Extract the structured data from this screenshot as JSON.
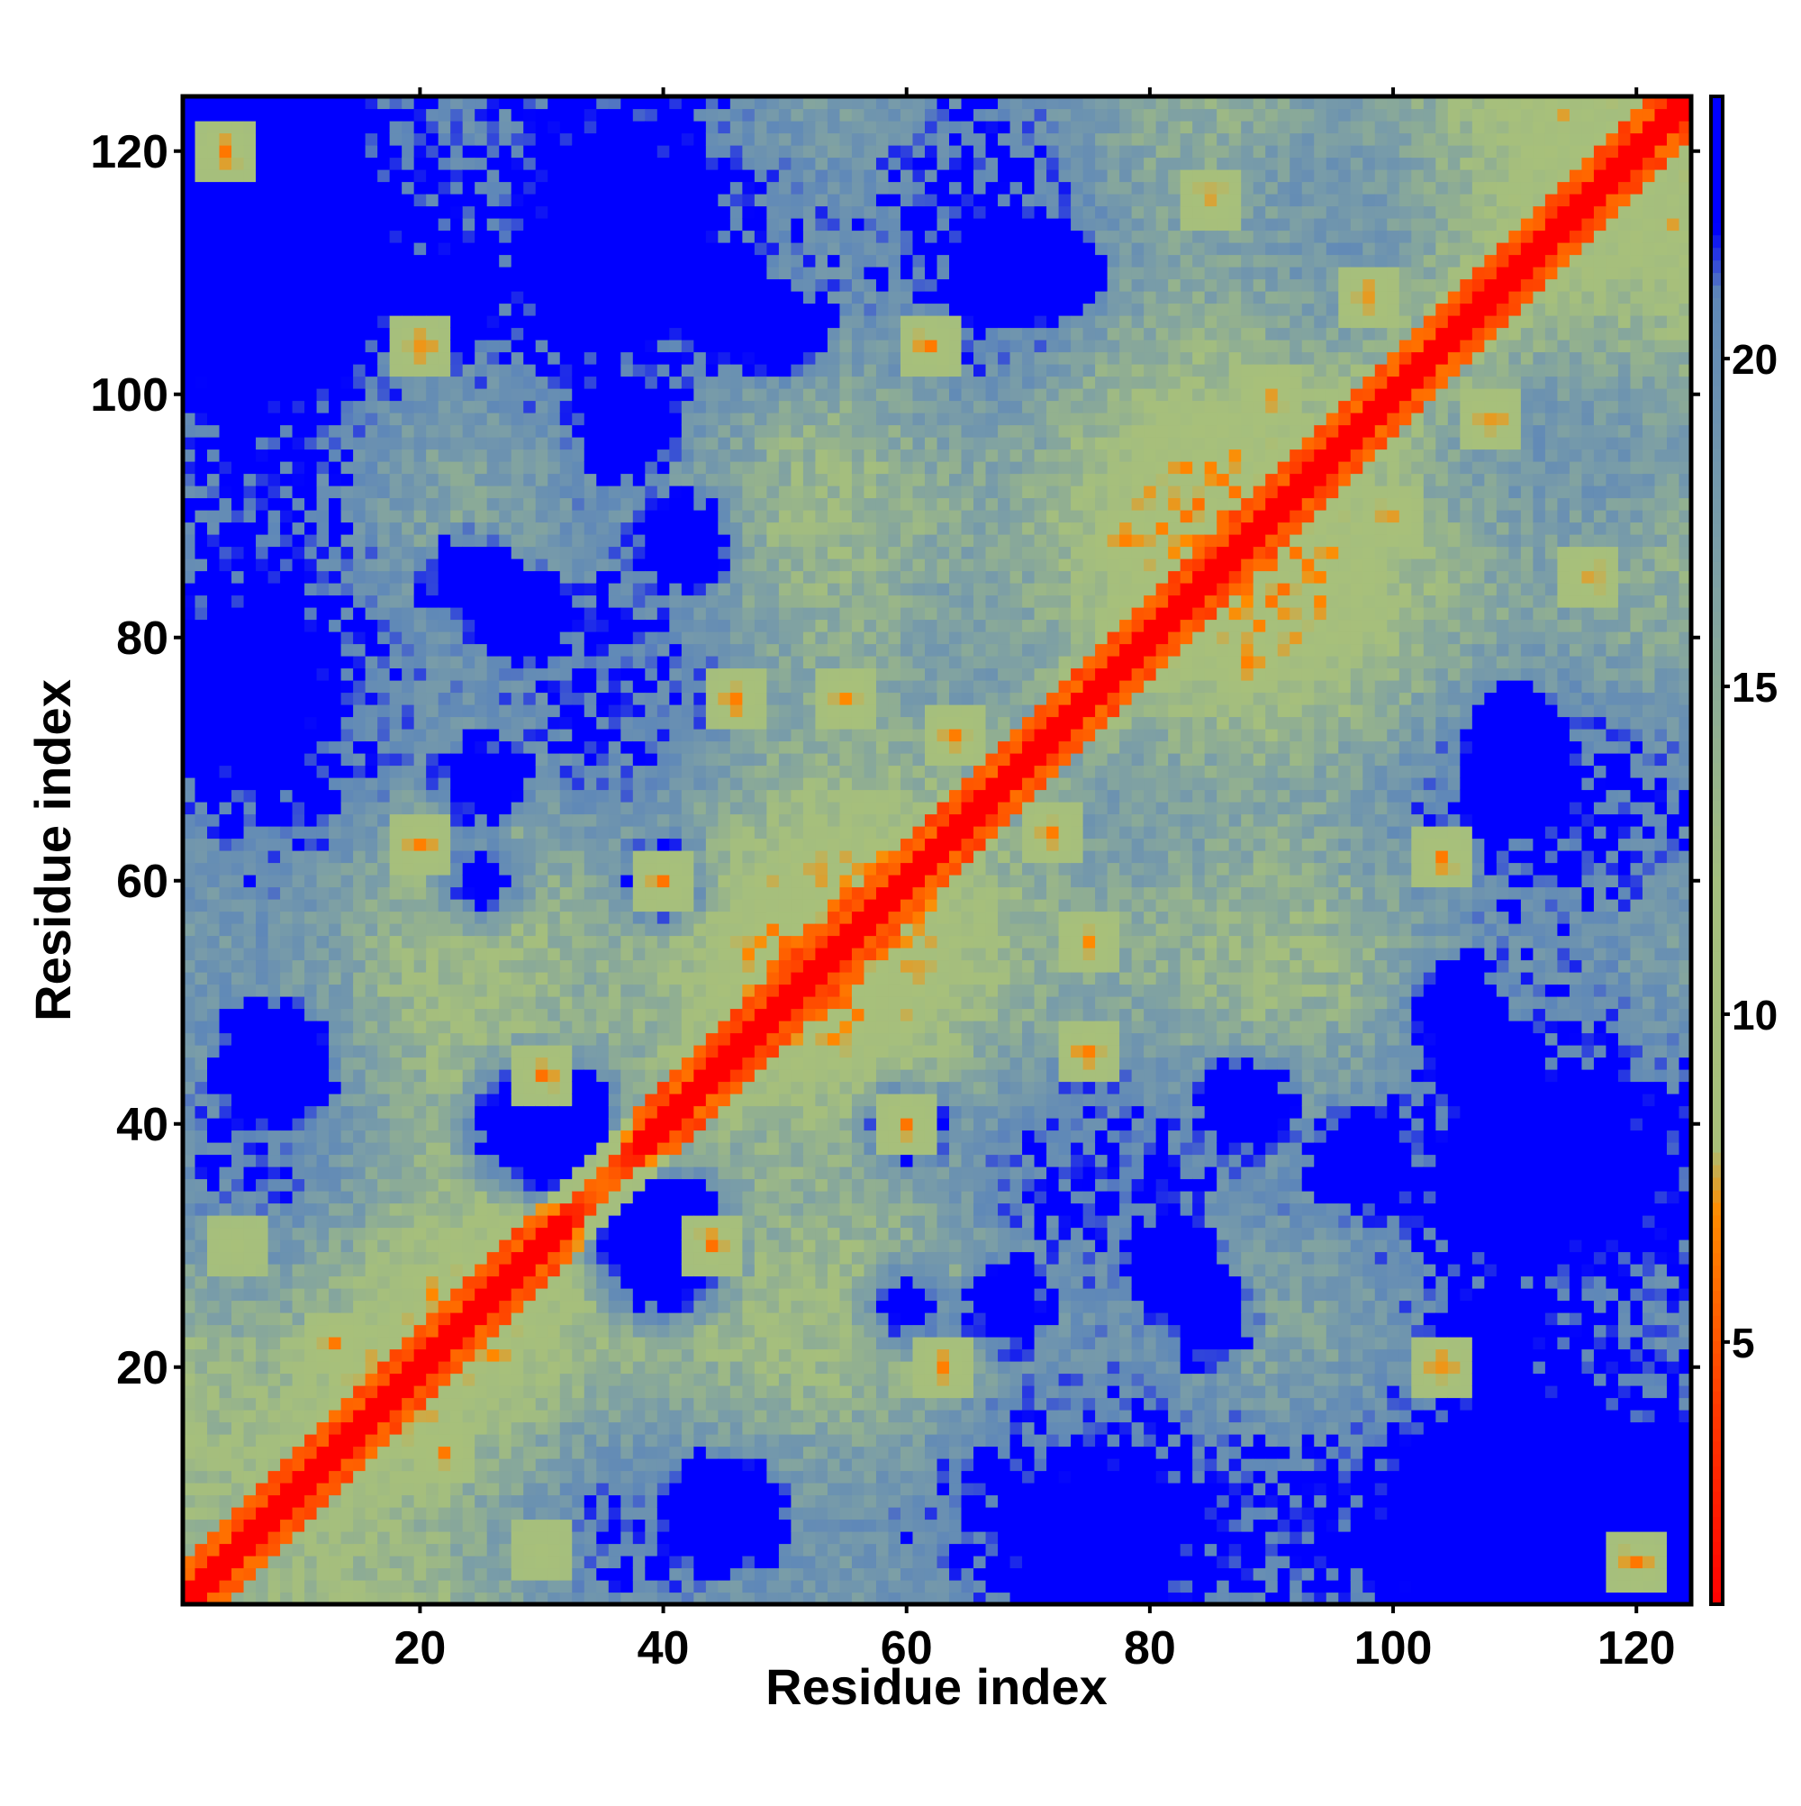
{
  "chart_data": {
    "type": "heatmap",
    "title": "",
    "xlabel": "Residue index",
    "ylabel": "Residue index",
    "n_residues": 124,
    "xlim": [
      1,
      124
    ],
    "ylim": [
      1,
      124
    ],
    "x_ticks": [
      20,
      40,
      60,
      80,
      100,
      120
    ],
    "y_ticks": [
      20,
      40,
      60,
      80,
      100,
      120
    ],
    "x_tick_labels": [
      "20",
      "40",
      "60",
      "80",
      "100",
      "120"
    ],
    "y_tick_labels": [
      "20",
      "40",
      "60",
      "80",
      "100",
      "120"
    ],
    "colorbar": {
      "range": [
        1,
        24
      ],
      "ticks": [
        5,
        10,
        15,
        20
      ],
      "tick_labels": [
        "5",
        "10",
        "15",
        "20"
      ],
      "placement": "right"
    },
    "color_scale": [
      {
        "value": 1,
        "color": "#ff0000"
      },
      {
        "value": 4,
        "color": "#ff3a00"
      },
      {
        "value": 7,
        "color": "#ff8c00"
      },
      {
        "value": 8,
        "color": "#a8c07a"
      },
      {
        "value": 12,
        "color": "#a4be7e"
      },
      {
        "value": 17,
        "color": "#7b9ea7"
      },
      {
        "value": 21,
        "color": "#5f88b8"
      },
      {
        "value": 22,
        "color": "#0000ff"
      },
      {
        "value": 24,
        "color": "#0000ff"
      }
    ],
    "symmetric": true,
    "diagonal_value": 0,
    "saturation_value": 24,
    "contact_regions": [
      {
        "i": 13,
        "j": 22,
        "value": 6
      },
      {
        "i": 30,
        "j": 44,
        "value": 6
      },
      {
        "i": 40,
        "j": 60,
        "value": 6
      },
      {
        "i": 55,
        "j": 75,
        "value": 6
      },
      {
        "i": 64,
        "j": 72,
        "value": 6
      },
      {
        "i": 78,
        "j": 88,
        "value": 6
      },
      {
        "i": 90,
        "j": 100,
        "value": 6
      },
      {
        "i": 98,
        "j": 108,
        "value": 6
      },
      {
        "i": 4,
        "j": 120,
        "value": 6
      },
      {
        "i": 62,
        "j": 104,
        "value": 6
      },
      {
        "i": 85,
        "j": 116,
        "value": 6
      },
      {
        "i": 5,
        "j": 30,
        "value": 7
      },
      {
        "i": 20,
        "j": 104,
        "value": 6
      },
      {
        "i": 63,
        "j": 20,
        "value": 6
      },
      {
        "i": 75,
        "j": 46,
        "value": 6
      }
    ],
    "far_regions": [
      {
        "i": 30,
        "j": 40,
        "size": 8
      },
      {
        "i": 8,
        "j": 45,
        "size": 6
      },
      {
        "i": 25,
        "j": 60,
        "size": 5
      },
      {
        "i": 28,
        "j": 82,
        "size": 5
      },
      {
        "i": 37,
        "j": 97,
        "size": 5
      },
      {
        "i": 45,
        "j": 108,
        "size": 5
      },
      {
        "i": 22,
        "j": 107,
        "size": 5
      },
      {
        "i": 72,
        "j": 110,
        "size": 5
      },
      {
        "i": 68,
        "j": 25,
        "size": 5
      },
      {
        "i": 85,
        "j": 24,
        "size": 5
      },
      {
        "i": 110,
        "j": 68,
        "size": 5
      },
      {
        "i": 105,
        "j": 50,
        "size": 5
      },
      {
        "i": 117,
        "j": 10,
        "size": 4
      },
      {
        "i": 60,
        "j": 40,
        "size": 5
      },
      {
        "i": 42,
        "j": 88,
        "size": 5
      }
    ],
    "grid": false,
    "legend": "none"
  }
}
